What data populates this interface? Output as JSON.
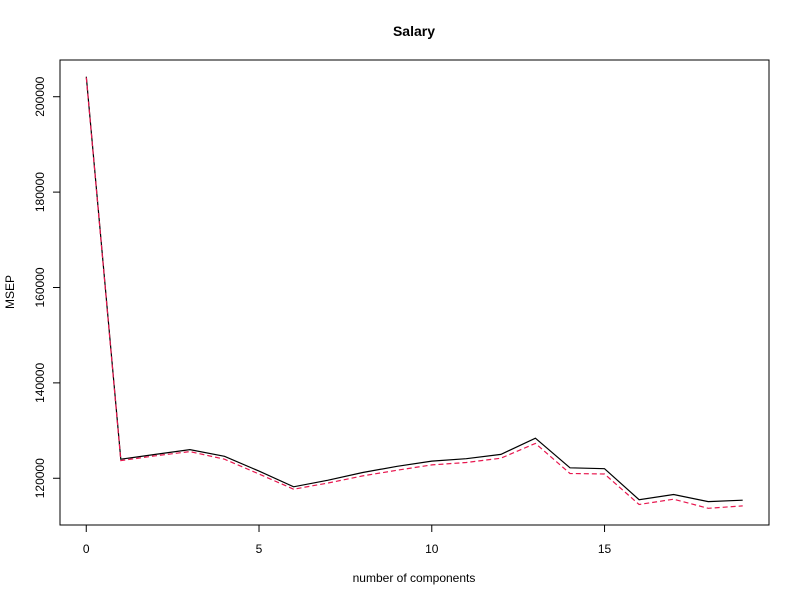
{
  "chart_data": {
    "type": "line",
    "title": "Salary",
    "xlabel": "number of components",
    "ylabel": "MSEP",
    "xlim": [
      -0.76,
      19.76
    ],
    "ylim": [
      110200,
      207700
    ],
    "x_ticks": [
      0,
      5,
      10,
      15
    ],
    "y_ticks": [
      120000,
      140000,
      160000,
      180000,
      200000
    ],
    "x": [
      0,
      1,
      2,
      3,
      4,
      5,
      6,
      7,
      8,
      9,
      10,
      11,
      12,
      13,
      14,
      15,
      16,
      17,
      18,
      19
    ],
    "series": [
      {
        "color": "#000000",
        "style": "solid",
        "values": [
          204200,
          124000,
          125000,
          126000,
          124600,
          121500,
          118200,
          119600,
          121200,
          122500,
          123600,
          124100,
          125000,
          128400,
          122200,
          122000,
          115500,
          116600,
          115100,
          115400
        ]
      },
      {
        "color": "#e8174f",
        "style": "dashed",
        "values": [
          204000,
          123700,
          124700,
          125600,
          124000,
          120900,
          117700,
          119000,
          120500,
          121700,
          122800,
          123300,
          124200,
          127300,
          121000,
          120900,
          114500,
          115600,
          113700,
          114200
        ]
      }
    ],
    "grid": false,
    "legend": "none"
  }
}
